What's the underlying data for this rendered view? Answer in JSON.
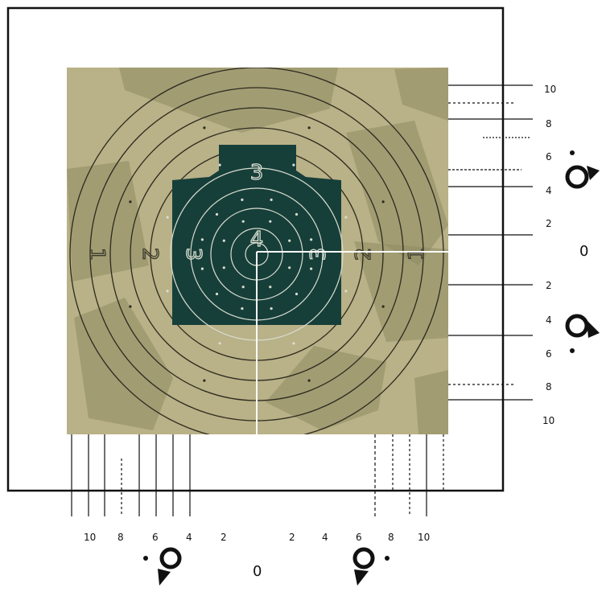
{
  "target": {
    "ring_labels_left": [
      "1",
      "2",
      "3"
    ],
    "ring_labels_right": [
      "3",
      "2",
      "1"
    ],
    "silhouette_top_label": "3",
    "silhouette_center_label": "4",
    "colors": {
      "paper": "#b9b187",
      "patch": "#8f8a63",
      "silhouette": "#173f3a",
      "ring_dark": "#2c2a1f",
      "ring_light": "#d8ddd0",
      "frame": "#111111",
      "aim_lines": "#ffffff"
    }
  },
  "vertical_scale": {
    "labels": [
      "10",
      "8",
      "6",
      "4",
      "2",
      "0",
      "2",
      "4",
      "6",
      "8",
      "10"
    ],
    "icons": [
      "rotate-up-icon",
      "rotate-down-icon"
    ]
  },
  "horizontal_scale": {
    "left_labels": [
      "10",
      "8",
      "6",
      "4",
      "2"
    ],
    "zero": "0",
    "right_labels": [
      "2",
      "4",
      "6",
      "8",
      "10"
    ],
    "icons": [
      "rotate-left-icon",
      "rotate-right-icon"
    ]
  }
}
